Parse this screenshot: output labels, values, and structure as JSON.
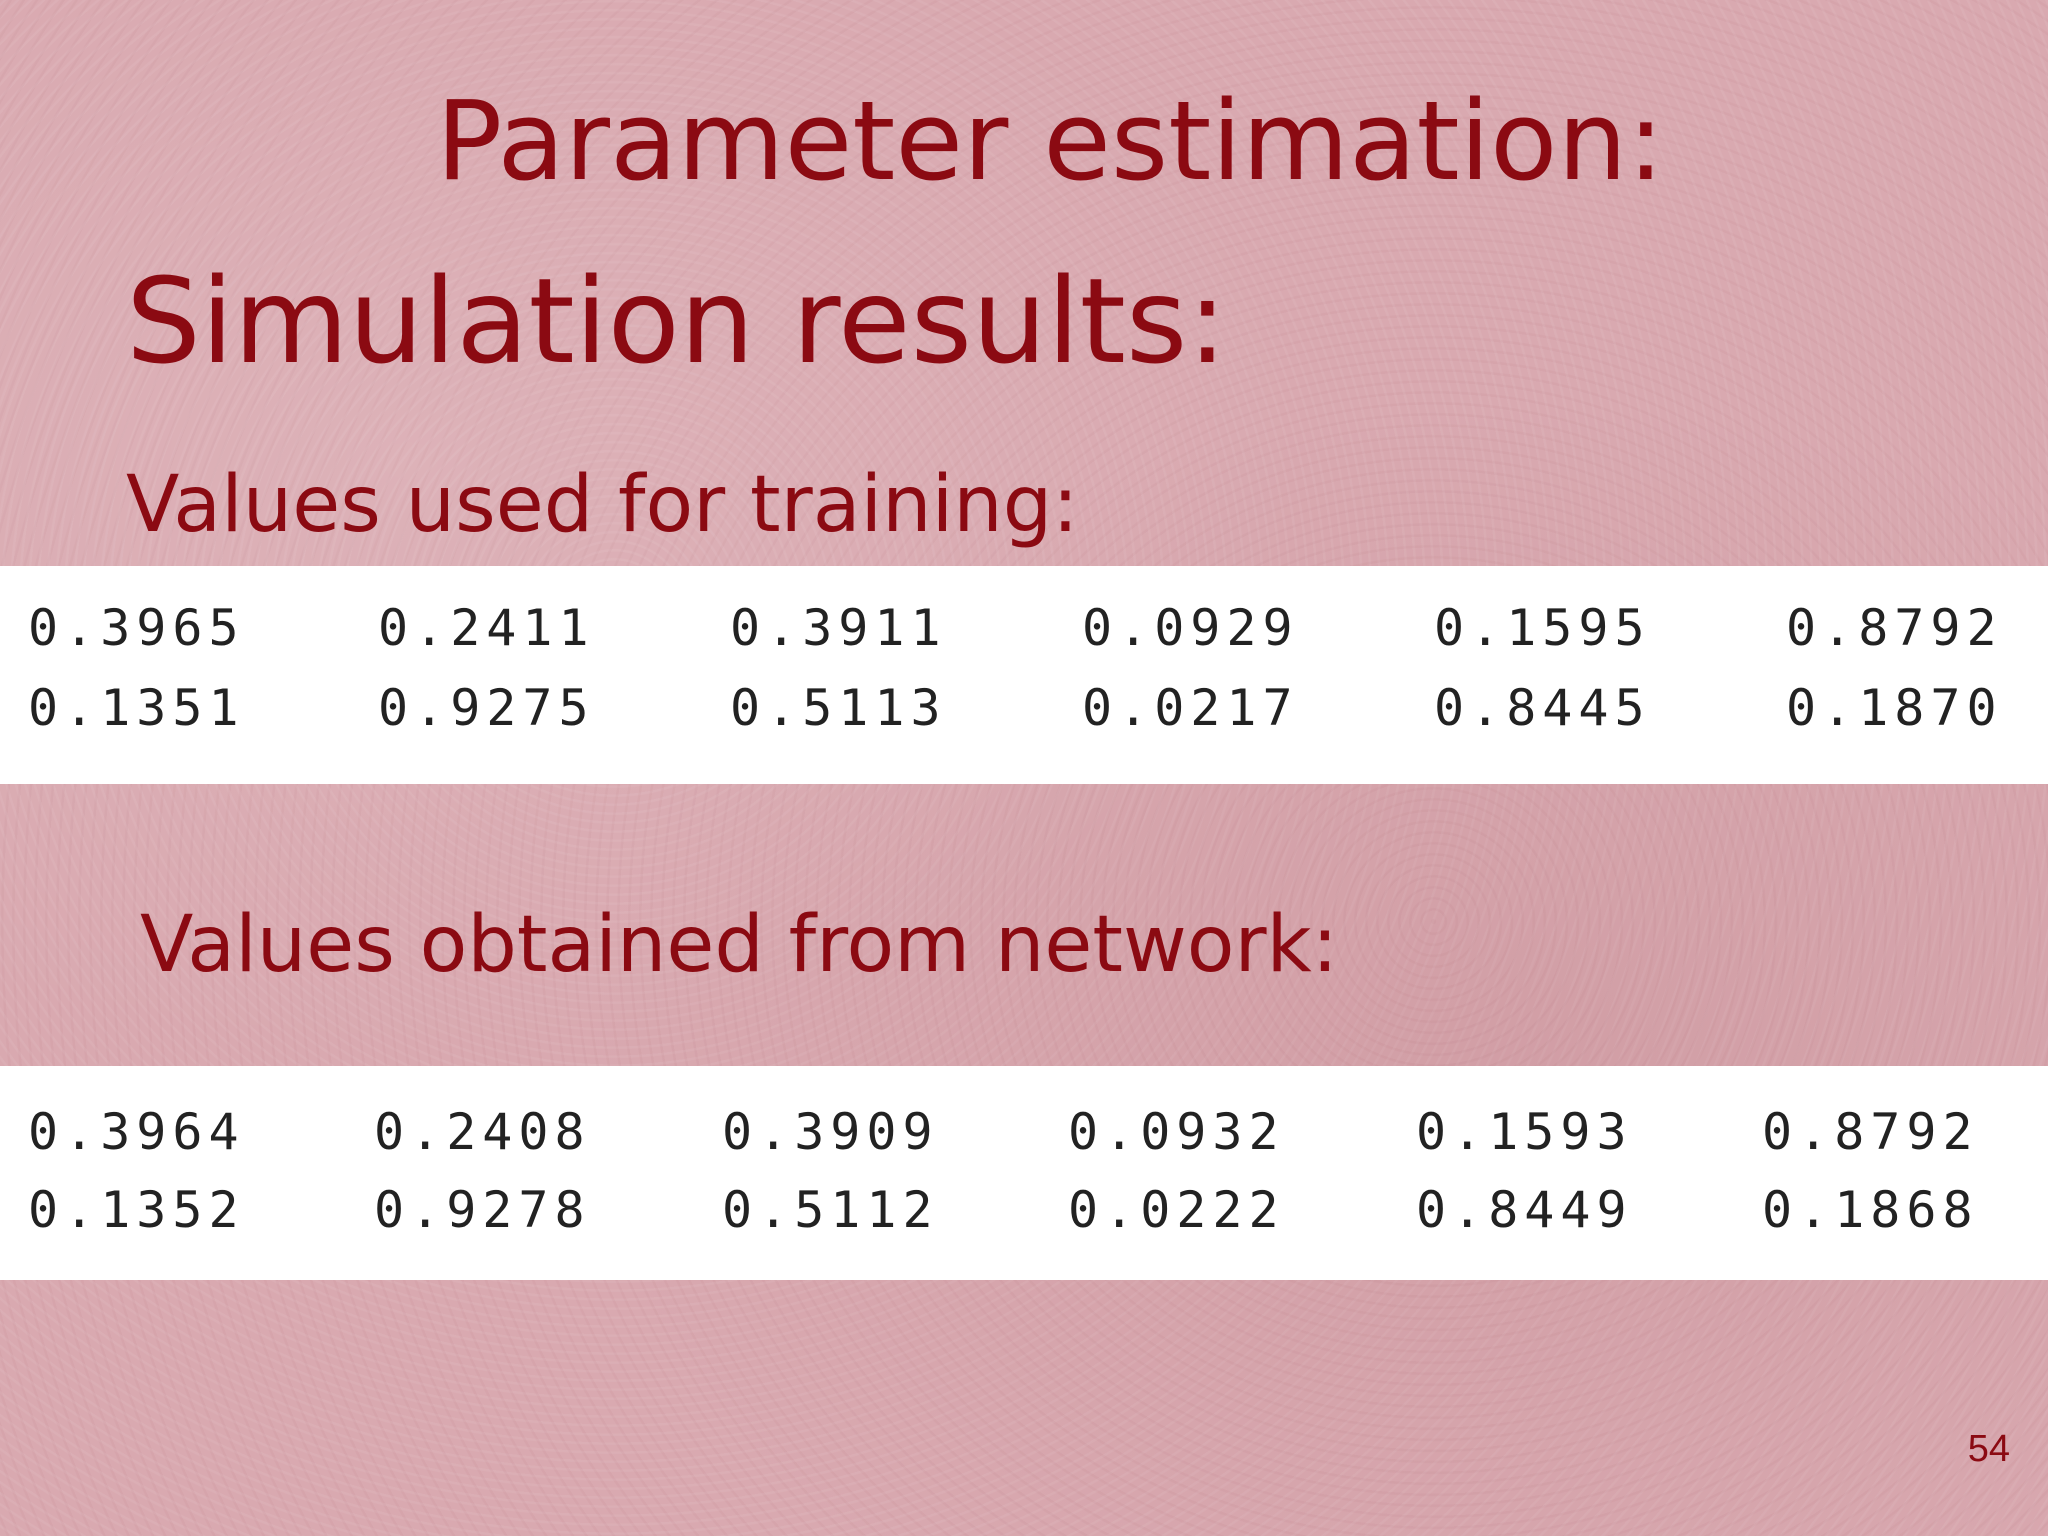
{
  "slide": {
    "title": "Parameter estimation:",
    "subtitle": "Simulation results:",
    "page_number": "54"
  },
  "training": {
    "label": "Values used for training:",
    "rows": [
      [
        "0.3965",
        "0.2411",
        "0.3911",
        "0.0929",
        "0.1595",
        "0.8792"
      ],
      [
        "0.1351",
        "0.9275",
        "0.5113",
        "0.0217",
        "0.8445",
        "0.1870"
      ]
    ]
  },
  "network": {
    "label": "Values obtained from network:",
    "rows": [
      [
        "0.3964",
        "0.2408",
        "0.3909",
        "0.0932",
        "0.1593",
        "0.8792"
      ],
      [
        "0.1352",
        "0.9278",
        "0.5112",
        "0.0222",
        "0.8449",
        "0.1868"
      ]
    ]
  },
  "colors": {
    "heading": "#8b0a12",
    "background": "#d9a9b0",
    "panel": "#ffffff",
    "numbers": "#222222"
  }
}
